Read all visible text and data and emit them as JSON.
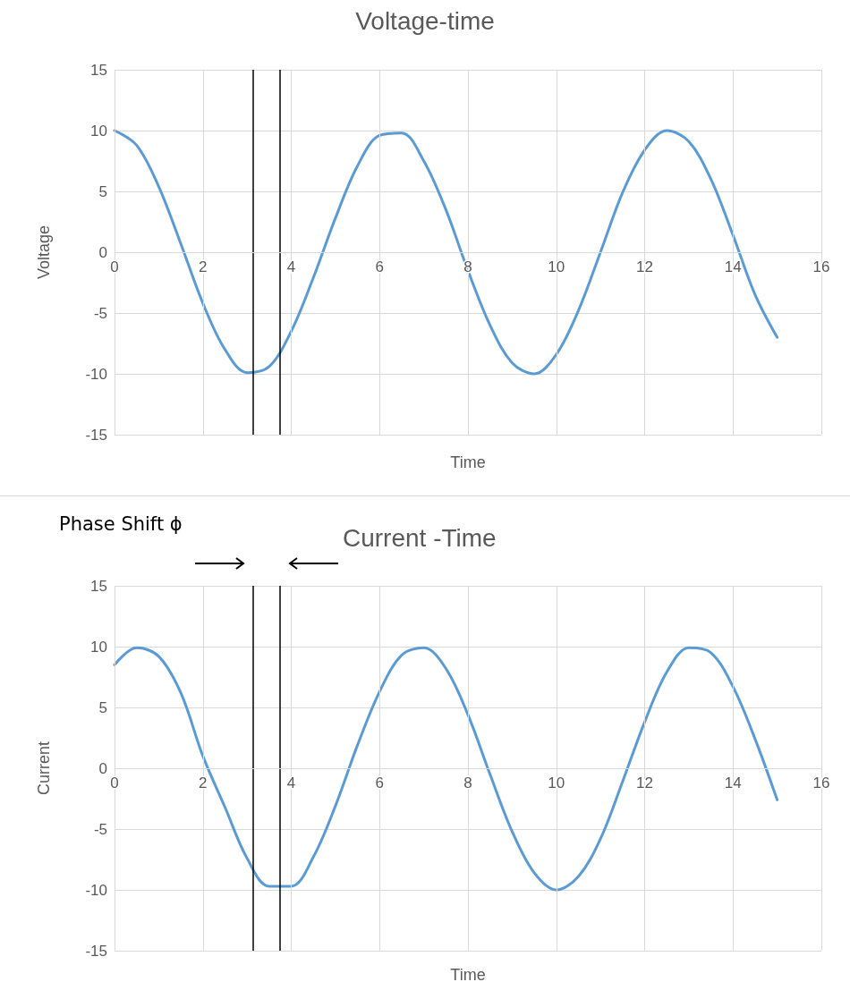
{
  "chart_data": [
    {
      "type": "line",
      "title": "Voltage-time",
      "xlabel": "Time",
      "ylabel": "Voltage",
      "x": [
        0,
        0.5,
        1,
        1.5,
        2,
        2.5,
        3,
        3.5,
        4,
        4.5,
        5,
        5.5,
        6,
        6.5,
        7,
        7.5,
        8,
        8.5,
        9,
        9.5,
        10,
        10.5,
        11,
        11.5,
        12,
        12.5,
        13,
        13.5,
        14,
        14.5,
        15
      ],
      "series": [
        {
          "color": "#5b9bd5",
          "values": [
            10,
            8.8,
            5.4,
            0.7,
            -4.2,
            -8.0,
            -9.9,
            -9.4,
            -6.5,
            -2.1,
            2.8,
            7.1,
            9.6,
            9.8,
            7.5,
            3.5,
            -1.5,
            -6.0,
            -9.1,
            -10.0,
            -8.4,
            -4.8,
            0.0,
            4.9,
            8.4,
            10.0,
            9.1,
            6.0,
            1.4,
            -3.5,
            -7.0
          ]
        }
      ],
      "xlim": [
        0,
        16
      ],
      "xticks": [
        0,
        2,
        4,
        6,
        8,
        10,
        12,
        14,
        16
      ],
      "ylim": [
        -15,
        15
      ],
      "yticks": [
        -15,
        -10,
        -5,
        0,
        5,
        10,
        15
      ],
      "grid": true,
      "marker": "none",
      "line_style": "solid",
      "ref_lines": [
        {
          "axis": "x",
          "value": 3.14,
          "color": "#000000"
        },
        {
          "axis": "x",
          "value": 3.75,
          "color": "#000000"
        }
      ]
    },
    {
      "type": "line",
      "title": "Current -Time",
      "xlabel": "Time",
      "ylabel": "Current",
      "x": [
        0,
        0.5,
        1,
        1.5,
        2,
        2.5,
        3,
        3.5,
        4,
        4.5,
        5,
        5.5,
        6,
        6.5,
        7,
        7.5,
        8,
        8.5,
        9,
        9.5,
        10,
        10.5,
        11,
        11.5,
        12,
        12.5,
        13,
        13.5,
        14,
        14.5,
        15
      ],
      "series": [
        {
          "color": "#5b9bd5",
          "values": [
            8.5,
            9.9,
            9.2,
            6.2,
            1.0,
            -3.2,
            -7.4,
            -9.7,
            -9.7,
            -7.3,
            -3.1,
            1.9,
            6.3,
            9.3,
            9.9,
            8.2,
            4.4,
            -0.5,
            -5.2,
            -8.6,
            -10.0,
            -8.9,
            -5.8,
            -1.1,
            3.8,
            7.9,
            9.9,
            9.5,
            6.7,
            2.4,
            -2.6
          ]
        }
      ],
      "xlim": [
        0,
        16
      ],
      "xticks": [
        0,
        2,
        4,
        6,
        8,
        10,
        12,
        14,
        16
      ],
      "ylim": [
        -15,
        15
      ],
      "yticks": [
        -15,
        -10,
        -5,
        0,
        5,
        10,
        15
      ],
      "grid": true,
      "marker": "none",
      "line_style": "solid",
      "annotations": [
        "Phase Shift ϕ"
      ],
      "ref_lines": [
        {
          "axis": "x",
          "value": 3.14,
          "color": "#000000"
        },
        {
          "axis": "x",
          "value": 3.75,
          "color": "#000000"
        }
      ]
    }
  ]
}
